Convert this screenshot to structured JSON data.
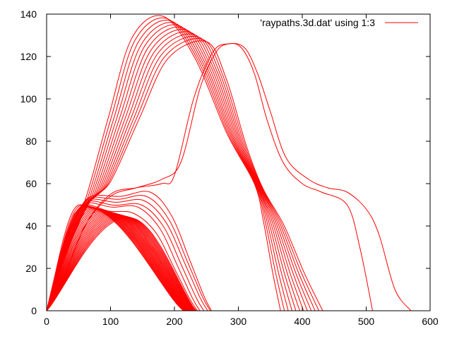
{
  "chart_data": {
    "type": "line",
    "title": "",
    "xlabel": "",
    "ylabel": "",
    "xlim": [
      0,
      600
    ],
    "ylim": [
      0,
      140
    ],
    "x_ticks": [
      0,
      100,
      200,
      300,
      400,
      500,
      600
    ],
    "y_ticks": [
      0,
      20,
      40,
      60,
      80,
      100,
      120,
      140
    ],
    "grid": false,
    "legend_position": "top-right",
    "series_color": "#ff0000",
    "legend": {
      "label": "'raypaths.3d.dat' using 1:3"
    },
    "ray_families": {
      "low": {
        "count": 26,
        "peak_x": {
          "from": 52,
          "to": 128
        },
        "peak_y": {
          "from": 50,
          "to": 44
        },
        "end_x": {
          "from": 214,
          "to": 234
        }
      },
      "mid": {
        "count": 6,
        "peak_x": [
          136,
          142,
          148,
          152,
          156,
          162
        ],
        "peak_y": [
          46,
          49,
          50,
          52,
          54,
          56
        ],
        "end_x": [
          236,
          240,
          246,
          252,
          256,
          258
        ]
      },
      "high": {
        "count": 12,
        "kink_x": {
          "from": 60,
          "to": 100
        },
        "kink_y": {
          "from": 52,
          "to": 61
        },
        "peak_x": {
          "from": 182,
          "to": 250
        },
        "peak_y": {
          "from": 139,
          "to": 127
        },
        "fall_x": {
          "from": 325,
          "to": 338
        },
        "fall_y": {
          "from": 60,
          "to": 58
        },
        "end_x": {
          "from": 366,
          "to": 432
        }
      },
      "outer": [
        {
          "points": [
            [
              0,
              0
            ],
            [
              20,
              10
            ],
            [
              60,
              40
            ],
            [
              100,
              54
            ],
            [
              140,
              58
            ],
            [
              180,
              62
            ],
            [
              210,
              70
            ],
            [
              240,
              105
            ],
            [
              265,
              122
            ],
            [
              285,
              126
            ],
            [
              305,
              124
            ],
            [
              325,
              112
            ],
            [
              345,
              90
            ],
            [
              370,
              70
            ],
            [
              400,
              60
            ],
            [
              430,
              56
            ],
            [
              470,
              50
            ],
            [
              490,
              30
            ],
            [
              510,
              0
            ]
          ]
        },
        {
          "points": [
            [
              0,
              0
            ],
            [
              20,
              10
            ],
            [
              60,
              40
            ],
            [
              100,
              55
            ],
            [
              140,
              58
            ],
            [
              180,
              60
            ],
            [
              200,
              64
            ],
            [
              230,
              100
            ],
            [
              260,
              122
            ],
            [
              285,
              126
            ],
            [
              310,
              124
            ],
            [
              330,
              112
            ],
            [
              350,
              94
            ],
            [
              375,
              72
            ],
            [
              410,
              62
            ],
            [
              440,
              58
            ],
            [
              470,
              56
            ],
            [
              500,
              48
            ],
            [
              520,
              36
            ],
            [
              545,
              10
            ],
            [
              570,
              0
            ]
          ]
        }
      ]
    }
  }
}
